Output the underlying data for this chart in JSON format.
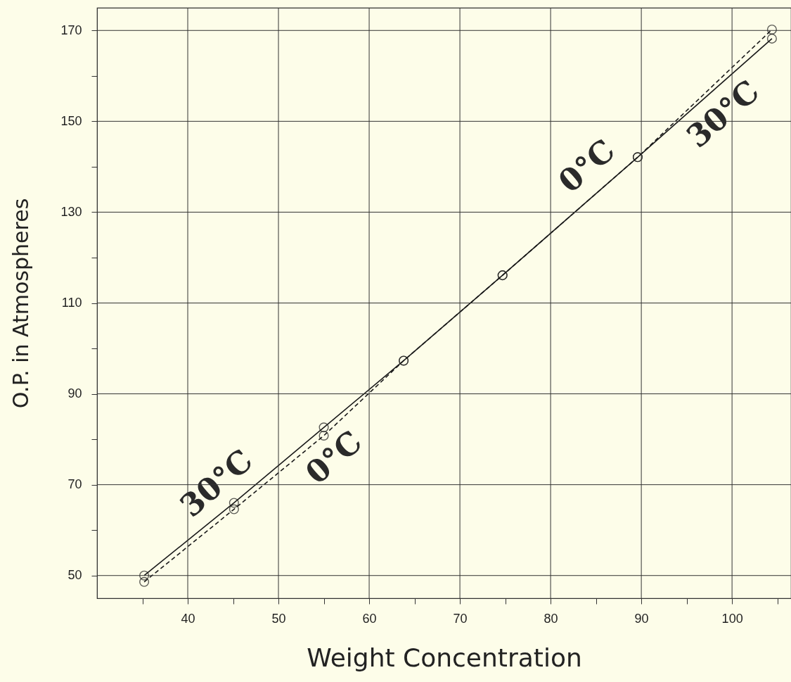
{
  "chart_data": {
    "type": "line",
    "xlabel": "Weight  Concentration",
    "ylabel": "O.P. in Atmospheres",
    "x": [
      35.2,
      45.1,
      55.0,
      63.8,
      74.7,
      89.6,
      104.4
    ],
    "series": [
      {
        "name": "30°C",
        "color": "#1a1a1a",
        "line_style": "solid",
        "values": [
          50.0,
          66.0,
          82.6,
          97.3,
          116.1,
          142.1,
          168.2
        ]
      },
      {
        "name": "0°C",
        "color": "#1a1a1a",
        "line_style": "dashed",
        "values": [
          48.6,
          64.6,
          80.8,
          97.3,
          116.1,
          142.1,
          170.2
        ]
      }
    ],
    "xlim": [
      30,
      106.5
    ],
    "ylim": [
      45,
      175
    ],
    "xticks": [
      {
        "value": 35,
        "label": null
      },
      40,
      {
        "value": 45,
        "label": null
      },
      50,
      {
        "value": 55,
        "label": null
      },
      60,
      {
        "value": 65,
        "label": null
      },
      70,
      {
        "value": 75,
        "label": null
      },
      80,
      {
        "value": 85,
        "label": null
      },
      90,
      {
        "value": 95,
        "label": null
      },
      100,
      {
        "value": 105,
        "label": null
      }
    ],
    "yticks": [
      50,
      {
        "value": 60,
        "label": null
      },
      70,
      {
        "value": 80,
        "label": null
      },
      90,
      {
        "value": 100,
        "label": null
      },
      110,
      {
        "value": 120,
        "label": null
      },
      130,
      {
        "value": 140,
        "label": null
      },
      150,
      {
        "value": 160,
        "label": null
      },
      170
    ],
    "grid": true,
    "marker": "circle"
  }
}
